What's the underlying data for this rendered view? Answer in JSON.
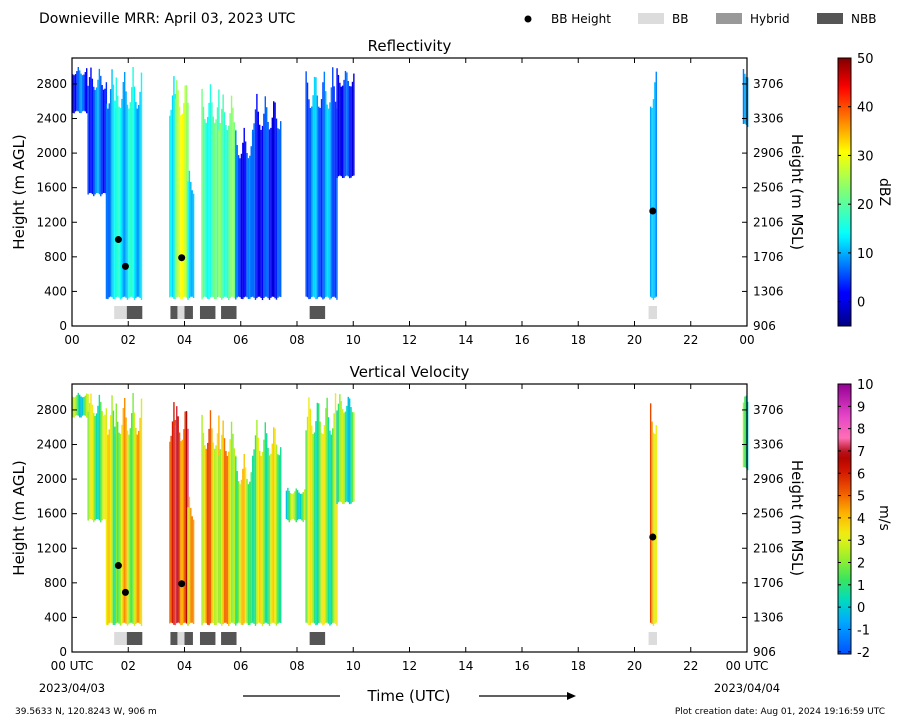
{
  "page": {
    "title": "Downieville MRR:  April 03, 2023 UTC",
    "location": "39.5633 N, 120.8243 W, 906 m",
    "creation": "Plot creation date: Aug 01, 2024 19:16:59 UTC",
    "time_label": "Time (UTC)",
    "start_date": "2023/04/03",
    "end_date": "2023/04/04"
  },
  "legend": [
    {
      "label": "BB Height",
      "kind": "dot",
      "color": "#000000"
    },
    {
      "label": "BB",
      "kind": "box",
      "color": "#dcdcdc"
    },
    {
      "label": "Hybrid",
      "kind": "box",
      "color": "#999999"
    },
    {
      "label": "NBB",
      "kind": "box",
      "color": "#555555"
    }
  ],
  "chart_data": [
    {
      "type": "heatmap",
      "title": "Reflectivity",
      "xlabel": "",
      "ylabel": "Height (m AGL)",
      "ylabel_right": "Height (m MSL)",
      "xlim": [
        0,
        24
      ],
      "ylim": [
        0,
        3100
      ],
      "x_ticks": [
        "00",
        "02",
        "04",
        "06",
        "08",
        "10",
        "12",
        "14",
        "16",
        "18",
        "20",
        "22",
        "00"
      ],
      "y_ticks": [
        0,
        400,
        800,
        1200,
        1600,
        2000,
        2400,
        2800
      ],
      "y_ticks_right": [
        "906",
        "1306",
        "1706",
        "2106",
        "2506",
        "2906",
        "3306",
        "3706"
      ],
      "colorbar": {
        "label": "dBZ",
        "range": [
          -5,
          50
        ],
        "ticks": [
          "0",
          "10",
          "20",
          "30",
          "40",
          "50"
        ],
        "colormap": "jet"
      },
      "precip_periods": [
        {
          "x": [
            0.0,
            0.5
          ],
          "top": 3000,
          "base": 2450,
          "value": 5
        },
        {
          "x": [
            0.55,
            1.2
          ],
          "top": 3000,
          "base": 1500,
          "value": 6
        },
        {
          "x": [
            1.2,
            1.55
          ],
          "top": 3000,
          "base": 300,
          "value": 10
        },
        {
          "x": [
            1.55,
            2.45
          ],
          "top": 3000,
          "base": 300,
          "value": 13
        },
        {
          "x": [
            3.45,
            3.65
          ],
          "top": 2900,
          "base": 300,
          "value": 16
        },
        {
          "x": [
            3.65,
            4.1
          ],
          "top": 2900,
          "base": 300,
          "value": 27
        },
        {
          "x": [
            4.1,
            4.3
          ],
          "top": 1800,
          "base": 300,
          "value": 14
        },
        {
          "x": [
            4.6,
            5.2
          ],
          "top": 2800,
          "base": 300,
          "value": 18
        },
        {
          "x": [
            5.2,
            5.8
          ],
          "top": 2700,
          "base": 300,
          "value": 20
        },
        {
          "x": [
            5.8,
            6.4
          ],
          "top": 2300,
          "base": 300,
          "value": 4
        },
        {
          "x": [
            6.4,
            7.4
          ],
          "top": 2700,
          "base": 300,
          "value": 3
        },
        {
          "x": [
            8.3,
            9.4
          ],
          "top": 3000,
          "base": 300,
          "value": 8
        },
        {
          "x": [
            9.4,
            10.0
          ],
          "top": 3000,
          "base": 1700,
          "value": 3
        },
        {
          "x": [
            20.55,
            20.78
          ],
          "top": 3000,
          "base": 300,
          "value": 8
        },
        {
          "x": [
            23.85,
            24.0
          ],
          "top": 3000,
          "base": 2300,
          "value": 6
        }
      ],
      "bb_height": [
        {
          "time": 1.65,
          "height": 1000
        },
        {
          "time": 1.9,
          "height": 690
        },
        {
          "time": 3.9,
          "height": 790
        },
        {
          "time": 20.65,
          "height": 1330
        }
      ],
      "bb_type_bars": [
        {
          "start": 1.5,
          "end": 1.95,
          "type": "BB"
        },
        {
          "start": 1.95,
          "end": 2.5,
          "type": "NBB"
        },
        {
          "start": 3.5,
          "end": 3.75,
          "type": "NBB"
        },
        {
          "start": 3.75,
          "end": 4.0,
          "type": "BB"
        },
        {
          "start": 4.0,
          "end": 4.3,
          "type": "NBB"
        },
        {
          "start": 4.55,
          "end": 5.1,
          "type": "NBB"
        },
        {
          "start": 5.3,
          "end": 5.85,
          "type": "NBB"
        },
        {
          "start": 8.45,
          "end": 9.0,
          "type": "NBB"
        },
        {
          "start": 20.5,
          "end": 20.8,
          "type": "BB"
        }
      ]
    },
    {
      "type": "heatmap",
      "title": "Vertical Velocity",
      "xlabel": "Time (UTC)",
      "ylabel": "Height (m AGL)",
      "ylabel_right": "Height (m MSL)",
      "xlim": [
        0,
        24
      ],
      "ylim": [
        0,
        3100
      ],
      "x_ticks": [
        "00 UTC",
        "02",
        "04",
        "06",
        "08",
        "10",
        "12",
        "14",
        "16",
        "18",
        "20",
        "22",
        "00 UTC"
      ],
      "y_ticks": [
        0,
        400,
        800,
        1200,
        1600,
        2000,
        2400,
        2800
      ],
      "y_ticks_right": [
        "906",
        "1306",
        "1706",
        "2106",
        "2506",
        "2906",
        "3306",
        "3706"
      ],
      "colorbar": {
        "label": "m/s",
        "range": [
          -2.1,
          10
        ],
        "ticks": [
          "-2",
          "-1",
          "0",
          "1",
          "2",
          "3",
          "4",
          "5",
          "6",
          "7",
          "8",
          "9",
          "10"
        ],
        "colormap": "velocity"
      },
      "precip_periods": [
        {
          "x": [
            0.0,
            0.55
          ],
          "top": 3000,
          "base": 2700,
          "value": 1.2
        },
        {
          "x": [
            0.55,
            1.2
          ],
          "top": 3000,
          "base": 1500,
          "value": 1.8
        },
        {
          "x": [
            1.2,
            1.55
          ],
          "top": 3000,
          "base": 300,
          "value": 2.4
        },
        {
          "x": [
            1.55,
            2.45
          ],
          "top": 3000,
          "base": 300,
          "value": 3.0
        },
        {
          "x": [
            3.45,
            3.65
          ],
          "top": 2900,
          "base": 300,
          "value": 4.5
        },
        {
          "x": [
            3.65,
            4.1
          ],
          "top": 2900,
          "base": 300,
          "value": 5.8
        },
        {
          "x": [
            4.1,
            4.3
          ],
          "top": 1800,
          "base": 300,
          "value": 3.2
        },
        {
          "x": [
            4.6,
            5.2
          ],
          "top": 2800,
          "base": 300,
          "value": 4.0
        },
        {
          "x": [
            5.2,
            5.8
          ],
          "top": 2700,
          "base": 300,
          "value": 3.6
        },
        {
          "x": [
            5.8,
            6.4
          ],
          "top": 2300,
          "base": 300,
          "value": 2.6
        },
        {
          "x": [
            6.4,
            7.4
          ],
          "top": 2700,
          "base": 300,
          "value": 2.2
        },
        {
          "x": [
            7.6,
            8.3
          ],
          "top": 1900,
          "base": 1500,
          "value": 1.4
        },
        {
          "x": [
            8.3,
            9.4
          ],
          "top": 3000,
          "base": 300,
          "value": 1.9
        },
        {
          "x": [
            9.4,
            10.0
          ],
          "top": 3000,
          "base": 1700,
          "value": 1.3
        },
        {
          "x": [
            20.55,
            20.78
          ],
          "top": 3000,
          "base": 300,
          "value": 4.6
        },
        {
          "x": [
            23.85,
            24.0
          ],
          "top": 3000,
          "base": 2100,
          "value": 1.5
        }
      ],
      "bb_height": [
        {
          "time": 1.65,
          "height": 1000
        },
        {
          "time": 1.9,
          "height": 690
        },
        {
          "time": 3.9,
          "height": 790
        },
        {
          "time": 20.65,
          "height": 1330
        }
      ],
      "bb_type_bars": [
        {
          "start": 1.5,
          "end": 1.95,
          "type": "BB"
        },
        {
          "start": 1.95,
          "end": 2.5,
          "type": "NBB"
        },
        {
          "start": 3.5,
          "end": 3.75,
          "type": "NBB"
        },
        {
          "start": 3.75,
          "end": 4.0,
          "type": "BB"
        },
        {
          "start": 4.0,
          "end": 4.3,
          "type": "NBB"
        },
        {
          "start": 4.55,
          "end": 5.1,
          "type": "NBB"
        },
        {
          "start": 5.3,
          "end": 5.85,
          "type": "NBB"
        },
        {
          "start": 8.45,
          "end": 9.0,
          "type": "NBB"
        },
        {
          "start": 20.5,
          "end": 20.8,
          "type": "BB"
        }
      ]
    }
  ]
}
